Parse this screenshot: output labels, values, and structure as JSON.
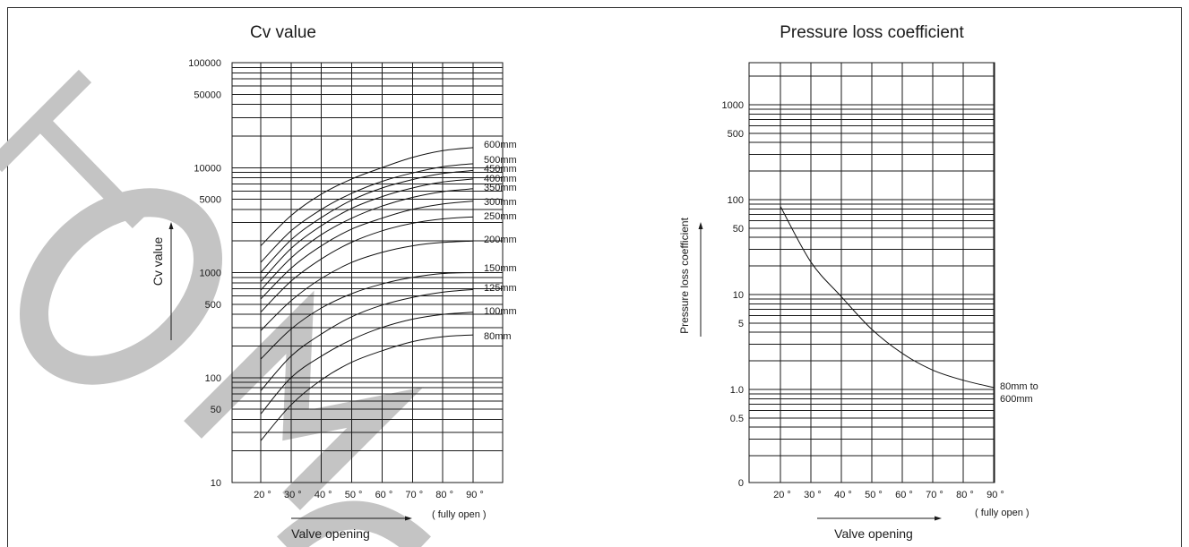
{
  "charts": {
    "cv": {
      "title": "Cv value",
      "ylabel": "Cv value",
      "xlabel": "Valve opening",
      "x_note": "( fully open )",
      "y_ticks": [
        "100000",
        "50000",
        "10000",
        "5000",
        "1000",
        "500",
        "100",
        "50",
        "10"
      ],
      "x_ticks": [
        "20 °",
        "30 °",
        "40 °",
        "50 °",
        "60 °",
        "70 °",
        "80 °",
        "90 °"
      ]
    },
    "plc": {
      "title": "Pressure loss coefficient",
      "ylabel": "Pressure loss coefficient",
      "xlabel": "Valve opening",
      "x_note": "( fully open )",
      "y_ticks": [
        "1000",
        "500",
        "100",
        "50",
        "10",
        "5",
        "1.0",
        "0.5",
        "0"
      ],
      "x_ticks": [
        "20 °",
        "30 °",
        "40 °",
        "50 °",
        "60 °",
        "70 °",
        "80 °",
        "90 °"
      ],
      "series_label_line1": "80mm to",
      "series_label_line2": "600mm"
    }
  },
  "chart_data": [
    {
      "type": "line",
      "title": "Cv value",
      "xlabel": "Valve opening",
      "ylabel": "Cv value",
      "yscale": "log",
      "ylim": [
        10,
        100000
      ],
      "x": [
        20,
        30,
        40,
        50,
        60,
        70,
        80,
        90
      ],
      "x_tick_labels": [
        "20 °",
        "30 °",
        "40 °",
        "50 °",
        "60 °",
        "70 °",
        "80 °",
        "90 °"
      ],
      "y_tick_labels": [
        "10",
        "50",
        "100",
        "500",
        "1000",
        "5000",
        "10000",
        "50000",
        "100000"
      ],
      "series": [
        {
          "name": "600mm",
          "values": [
            1800,
            3500,
            5600,
            7800,
            10000,
            12500,
            14500,
            15500
          ]
        },
        {
          "name": "500mm",
          "values": [
            1250,
            2500,
            4000,
            5700,
            7400,
            8900,
            10200,
            10900
          ]
        },
        {
          "name": "450mm",
          "values": [
            1000,
            2050,
            3350,
            4900,
            6400,
            7700,
            8800,
            9400
          ]
        },
        {
          "name": "400mm",
          "values": [
            820,
            1700,
            2800,
            4100,
            5300,
            6400,
            7300,
            7800
          ]
        },
        {
          "name": "350mm",
          "values": [
            680,
            1380,
            2300,
            3300,
            4300,
            5200,
            5900,
            6300
          ]
        },
        {
          "name": "300mm",
          "values": [
            560,
            1100,
            1800,
            2600,
            3300,
            4000,
            4500,
            4800
          ]
        },
        {
          "name": "250mm",
          "values": [
            420,
            830,
            1350,
            1950,
            2500,
            2950,
            3250,
            3400
          ]
        },
        {
          "name": "200mm",
          "values": [
            280,
            540,
            880,
            1250,
            1560,
            1800,
            1940,
            2000
          ]
        },
        {
          "name": "150mm",
          "values": [
            150,
            290,
            460,
            630,
            780,
            900,
            980,
            1000
          ]
        },
        {
          "name": "125mm",
          "values": [
            75,
            160,
            260,
            380,
            490,
            580,
            650,
            690
          ]
        },
        {
          "name": "100mm",
          "values": [
            45,
            100,
            160,
            230,
            300,
            360,
            400,
            420
          ]
        },
        {
          "name": "80mm",
          "values": [
            25,
            55,
            95,
            140,
            180,
            220,
            245,
            255
          ]
        }
      ]
    },
    {
      "type": "line",
      "title": "Pressure loss coefficient",
      "xlabel": "Valve opening",
      "ylabel": "Pressure loss coefficient",
      "yscale": "log",
      "x": [
        20,
        30,
        40,
        50,
        60,
        70,
        80,
        90
      ],
      "x_tick_labels": [
        "20 °",
        "30 °",
        "40 °",
        "50 °",
        "60 °",
        "70 °",
        "80 °",
        "90 °"
      ],
      "y_tick_labels": [
        "0",
        "0.5",
        "1.0",
        "5",
        "10",
        "50",
        "100",
        "500",
        "1000"
      ],
      "series": [
        {
          "name": "80mm to 600mm",
          "values": [
            85,
            22,
            9.5,
            4.3,
            2.4,
            1.6,
            1.25,
            1.05
          ]
        }
      ]
    }
  ],
  "colors": {
    "line": "#1a1a1a",
    "background": "#ffffff",
    "watermark": "#c4c4c4"
  }
}
